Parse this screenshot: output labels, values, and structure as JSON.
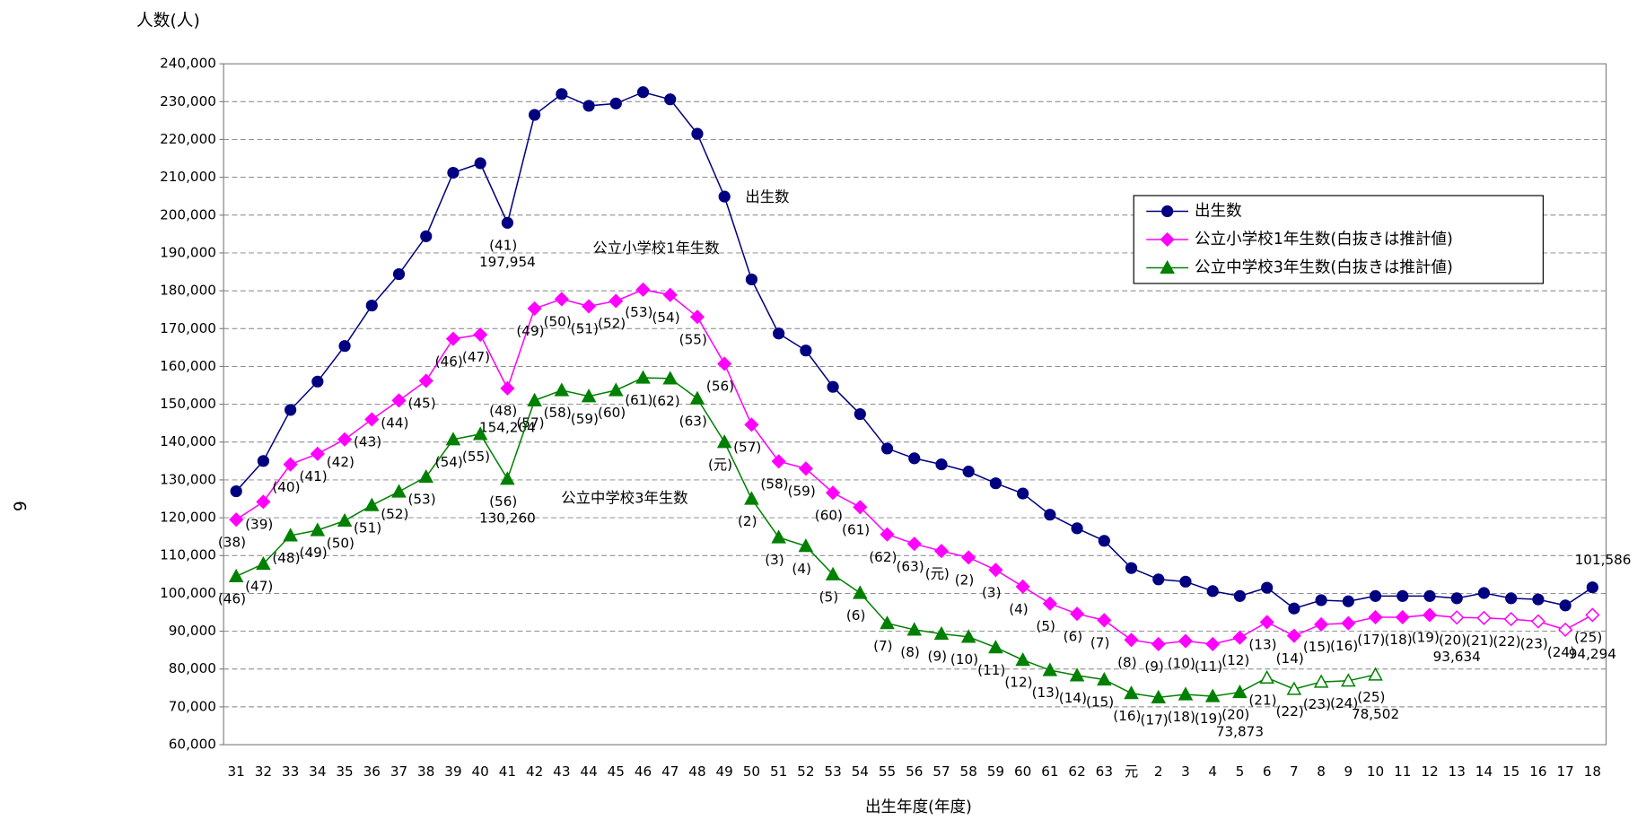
{
  "chart_data": {
    "type": "line",
    "page_number": "6",
    "y_axis_title": "人数(人)",
    "x_axis_title": "出生年度(年度)",
    "annotations": [
      "出生数",
      "公立小学校1年生数",
      "公立中学校3年生数"
    ],
    "grid": true,
    "legend": "upper right",
    "categories": [
      "31",
      "32",
      "33",
      "34",
      "35",
      "36",
      "37",
      "38",
      "39",
      "40",
      "41",
      "42",
      "43",
      "44",
      "45",
      "46",
      "47",
      "48",
      "49",
      "50",
      "51",
      "52",
      "53",
      "54",
      "55",
      "56",
      "57",
      "58",
      "59",
      "60",
      "61",
      "62",
      "63",
      "元",
      "2",
      "3",
      "4",
      "5",
      "6",
      "7",
      "8",
      "9",
      "10",
      "11",
      "12",
      "13",
      "14",
      "15",
      "16",
      "17",
      "18"
    ],
    "ylim": [
      60000,
      240000
    ],
    "yticks": [
      {
        "value": 60000,
        "label": "60,000"
      },
      {
        "value": 70000,
        "label": "70,000"
      },
      {
        "value": 80000,
        "label": "80,000"
      },
      {
        "value": 90000,
        "label": "90,000"
      },
      {
        "value": 100000,
        "label": "100,000"
      },
      {
        "value": 110000,
        "label": "110,000"
      },
      {
        "value": 120000,
        "label": "120,000"
      },
      {
        "value": 130000,
        "label": "130,000"
      },
      {
        "value": 140000,
        "label": "140,000"
      },
      {
        "value": 150000,
        "label": "150,000"
      },
      {
        "value": 160000,
        "label": "160,000"
      },
      {
        "value": 170000,
        "label": "170,000"
      },
      {
        "value": 180000,
        "label": "180,000"
      },
      {
        "value": 190000,
        "label": "190,000"
      },
      {
        "value": 200000,
        "label": "200,000"
      },
      {
        "value": 210000,
        "label": "210,000"
      },
      {
        "value": 220000,
        "label": "220,000"
      },
      {
        "value": 230000,
        "label": "230,000"
      },
      {
        "value": 240000,
        "label": "240,000"
      }
    ],
    "series": [
      {
        "name": "出生数",
        "color": "#000080",
        "marker": "circle",
        "values": [
          127000,
          135000,
          148500,
          156000,
          165400,
          176100,
          184400,
          194400,
          211200,
          213700,
          197954,
          226500,
          232000,
          228900,
          229500,
          232500,
          230600,
          221500,
          204900,
          183000,
          168700,
          164200,
          154600,
          147400,
          138300,
          135700,
          134100,
          132200,
          129100,
          126400,
          120800,
          117200,
          113900,
          106700,
          103700,
          103100,
          100600,
          99300,
          101500,
          96000,
          98200,
          97900,
          99300,
          99300,
          99300,
          98700,
          100100,
          98700,
          98400,
          96800,
          101586
        ],
        "value_labels": [
          null,
          null,
          null,
          null,
          null,
          null,
          null,
          null,
          null,
          null,
          "197,954",
          null,
          null,
          null,
          null,
          null,
          null,
          null,
          null,
          null,
          null,
          null,
          null,
          null,
          null,
          null,
          null,
          null,
          null,
          null,
          null,
          null,
          null,
          null,
          null,
          null,
          null,
          null,
          null,
          null,
          null,
          null,
          null,
          null,
          null,
          null,
          null,
          null,
          null,
          null,
          "101,586"
        ],
        "point_labels": [
          null,
          null,
          null,
          null,
          null,
          null,
          null,
          null,
          null,
          null,
          "(41)",
          null,
          null,
          null,
          null,
          null,
          null,
          null,
          null,
          null,
          null,
          null,
          null,
          null,
          null,
          null,
          null,
          null,
          null,
          null,
          null,
          null,
          null,
          null,
          null,
          null,
          null,
          null,
          null,
          null,
          null,
          null,
          null,
          null,
          null,
          null,
          null,
          null,
          null,
          null,
          null
        ]
      },
      {
        "name": "公立小学校1年生数(白抜きは推計値)",
        "color": "#ff00ff",
        "marker": "diamond",
        "hollow_from": 45,
        "values": [
          119500,
          124200,
          134100,
          136900,
          140700,
          146000,
          151000,
          156200,
          167300,
          168400,
          154204,
          175300,
          177800,
          175900,
          177300,
          180300,
          178900,
          173100,
          160700,
          144600,
          134900,
          133000,
          126600,
          122800,
          115600,
          113100,
          111200,
          109500,
          106200,
          101800,
          97300,
          94600,
          92900,
          87700,
          86600,
          87400,
          86600,
          88300,
          92400,
          88800,
          91800,
          92100,
          93700,
          93700,
          94300,
          93634,
          93500,
          93200,
          92600,
          90400,
          94294
        ],
        "value_labels": [
          null,
          null,
          null,
          null,
          null,
          null,
          null,
          null,
          null,
          null,
          "154,204",
          null,
          null,
          null,
          null,
          null,
          null,
          null,
          null,
          null,
          null,
          null,
          null,
          null,
          null,
          null,
          null,
          null,
          null,
          null,
          null,
          null,
          null,
          null,
          null,
          null,
          null,
          null,
          null,
          null,
          null,
          null,
          null,
          null,
          null,
          "93,634",
          null,
          null,
          null,
          null,
          "94,294"
        ],
        "point_labels": [
          "(38)",
          "(39)",
          "(40)",
          "(41)",
          "(42)",
          "(43)",
          "(44)",
          "(45)",
          "(46)",
          "(47)",
          "(48)",
          "(49)",
          "(50)",
          "(51)",
          "(52)",
          "(53)",
          "(54)",
          "(55)",
          "(56)",
          "(57)",
          "(58)",
          "(59)",
          "(60)",
          "(61)",
          "(62)",
          "(63)",
          "(元)",
          "(2)",
          "(3)",
          "(4)",
          "(5)",
          "(6)",
          "(7)",
          "(8)",
          "(9)",
          "(10)",
          "(11)",
          "(12)",
          "(13)",
          "(14)",
          "(15)",
          "(16)",
          "(17)",
          "(18)",
          "(19)",
          "(20)",
          "(21)",
          "(22)",
          "(23)",
          "(24)",
          "(25)"
        ]
      },
      {
        "name": "公立中学校3年生数(白抜きは推計値)",
        "color": "#008000",
        "marker": "triangle",
        "hollow_from": 38,
        "values": [
          104500,
          107800,
          115300,
          116700,
          119200,
          123300,
          126900,
          130800,
          140700,
          142100,
          130260,
          151000,
          153700,
          152100,
          153700,
          157000,
          156800,
          151500,
          140000,
          125000,
          114800,
          112500,
          105000,
          100100,
          92100,
          90400,
          89300,
          88500,
          85700,
          82400,
          79700,
          78300,
          77200,
          73600,
          72500,
          73300,
          72800,
          73873,
          77700,
          74700,
          76600,
          76900,
          78502,
          null,
          null,
          null,
          null,
          null,
          null,
          null,
          null
        ],
        "value_labels": [
          null,
          null,
          null,
          null,
          null,
          null,
          null,
          null,
          null,
          null,
          "130,260",
          null,
          null,
          null,
          null,
          null,
          null,
          null,
          null,
          null,
          null,
          null,
          null,
          null,
          null,
          null,
          null,
          null,
          null,
          null,
          null,
          null,
          null,
          null,
          null,
          null,
          null,
          "73,873",
          null,
          null,
          null,
          null,
          "78,502",
          null,
          null,
          null,
          null,
          null,
          null,
          null,
          null
        ],
        "point_labels": [
          "(46)",
          "(47)",
          "(48)",
          "(49)",
          "(50)",
          "(51)",
          "(52)",
          "(53)",
          "(54)",
          "(55)",
          "(56)",
          "(57)",
          "(58)",
          "(59)",
          "(60)",
          "(61)",
          "(62)",
          "(63)",
          "(元)",
          "(2)",
          "(3)",
          "(4)",
          "(5)",
          "(6)",
          "(7)",
          "(8)",
          "(9)",
          "(10)",
          "(11)",
          "(12)",
          "(13)",
          "(14)",
          "(15)",
          "(16)",
          "(17)",
          "(18)",
          "(19)",
          "(20)",
          "(21)",
          "(22)",
          "(23)",
          "(24)",
          "(25)",
          null,
          null,
          null,
          null,
          null,
          null,
          null,
          null
        ]
      }
    ]
  }
}
